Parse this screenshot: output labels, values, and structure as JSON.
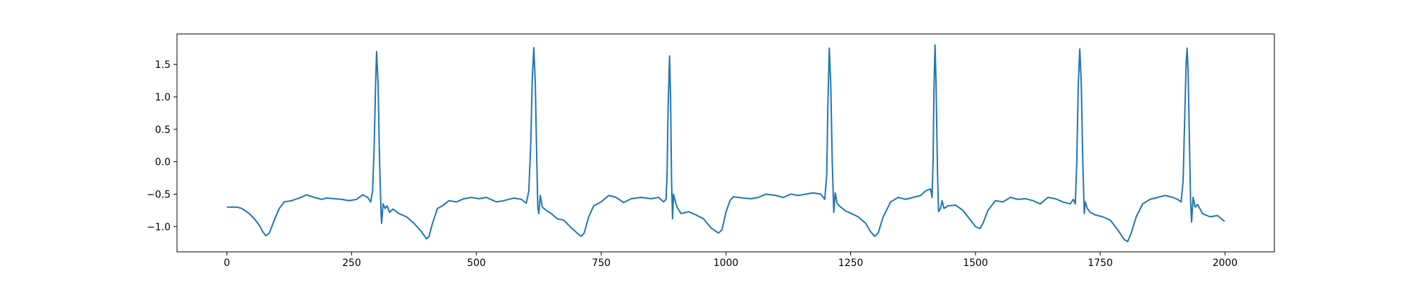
{
  "chart_data": {
    "type": "line",
    "color": "#1f77b4",
    "x": [
      0,
      20,
      30,
      45,
      55,
      65,
      72,
      78,
      85,
      95,
      105,
      115,
      130,
      145,
      160,
      175,
      190,
      200,
      215,
      230,
      245,
      260,
      272,
      282,
      288,
      292,
      295,
      298,
      300,
      303,
      306,
      309,
      310,
      313,
      317,
      321,
      326,
      333,
      345,
      360,
      375,
      390,
      400,
      405,
      412,
      422,
      432,
      445,
      460,
      475,
      490,
      505,
      520,
      540,
      555,
      575,
      590,
      600,
      605,
      609,
      612,
      615,
      618,
      621,
      623,
      625,
      628,
      632,
      640,
      650,
      662,
      675,
      690,
      705,
      710,
      716,
      725,
      735,
      750,
      765,
      780,
      795,
      810,
      830,
      850,
      865,
      875,
      880,
      882,
      884,
      887,
      889,
      891,
      893,
      895,
      898,
      902,
      910,
      925,
      940,
      955,
      970,
      985,
      992,
      1000,
      1008,
      1015,
      1035,
      1050,
      1065,
      1080,
      1100,
      1115,
      1130,
      1145,
      1160,
      1175,
      1190,
      1198,
      1202,
      1204,
      1207,
      1210,
      1213,
      1216,
      1219,
      1223,
      1230,
      1240,
      1252,
      1265,
      1280,
      1290,
      1298,
      1305,
      1315,
      1330,
      1345,
      1360,
      1375,
      1390,
      1400,
      1410,
      1413,
      1415,
      1417,
      1419,
      1421,
      1424,
      1426,
      1430,
      1433,
      1437,
      1445,
      1460,
      1475,
      1490,
      1500,
      1509,
      1515,
      1525,
      1540,
      1555,
      1570,
      1585,
      1600,
      1615,
      1630,
      1645,
      1660,
      1675,
      1690,
      1696,
      1700,
      1703,
      1706,
      1709,
      1712,
      1715,
      1718,
      1720,
      1724,
      1730,
      1740,
      1755,
      1770,
      1785,
      1798,
      1805,
      1812,
      1822,
      1835,
      1850,
      1865,
      1880,
      1895,
      1905,
      1912,
      1916,
      1919,
      1922,
      1924,
      1926,
      1929,
      1931,
      1933,
      1936,
      1940,
      1945,
      1955,
      1970,
      1985,
      1999
    ],
    "values": [
      -0.7,
      -0.7,
      -0.72,
      -0.8,
      -0.88,
      -0.98,
      -1.08,
      -1.14,
      -1.1,
      -0.9,
      -0.72,
      -0.62,
      -0.6,
      -0.56,
      -0.51,
      -0.55,
      -0.58,
      -0.56,
      -0.57,
      -0.58,
      -0.6,
      -0.58,
      -0.51,
      -0.55,
      -0.62,
      -0.45,
      0.2,
      1.2,
      1.7,
      1.2,
      0.0,
      -0.8,
      -0.95,
      -0.65,
      -0.72,
      -0.68,
      -0.78,
      -0.73,
      -0.8,
      -0.85,
      -0.95,
      -1.08,
      -1.19,
      -1.15,
      -0.95,
      -0.72,
      -0.68,
      -0.6,
      -0.62,
      -0.57,
      -0.55,
      -0.57,
      -0.55,
      -0.62,
      -0.6,
      -0.56,
      -0.58,
      -0.64,
      -0.45,
      0.3,
      1.3,
      1.76,
      1.2,
      0.0,
      -0.7,
      -0.8,
      -0.52,
      -0.7,
      -0.75,
      -0.8,
      -0.88,
      -0.9,
      -1.02,
      -1.12,
      -1.15,
      -1.1,
      -0.85,
      -0.68,
      -0.62,
      -0.52,
      -0.55,
      -0.63,
      -0.57,
      -0.55,
      -0.57,
      -0.55,
      -0.62,
      -0.58,
      -0.2,
      0.8,
      1.63,
      1.0,
      -0.3,
      -0.88,
      -0.5,
      -0.6,
      -0.7,
      -0.8,
      -0.77,
      -0.82,
      -0.88,
      -1.02,
      -1.1,
      -1.05,
      -0.78,
      -0.6,
      -0.54,
      -0.56,
      -0.57,
      -0.55,
      -0.5,
      -0.52,
      -0.55,
      -0.5,
      -0.52,
      -0.5,
      -0.48,
      -0.5,
      -0.58,
      -0.2,
      0.8,
      1.75,
      1.2,
      0.0,
      -0.78,
      -0.48,
      -0.65,
      -0.7,
      -0.76,
      -0.8,
      -0.85,
      -0.95,
      -1.08,
      -1.15,
      -1.1,
      -0.85,
      -0.62,
      -0.55,
      -0.58,
      -0.55,
      -0.52,
      -0.45,
      -0.42,
      -0.55,
      0.0,
      1.2,
      1.8,
      1.2,
      -0.2,
      -0.77,
      -0.72,
      -0.6,
      -0.72,
      -0.68,
      -0.67,
      -0.75,
      -0.9,
      -1.0,
      -1.03,
      -0.95,
      -0.75,
      -0.6,
      -0.62,
      -0.55,
      -0.58,
      -0.57,
      -0.6,
      -0.65,
      -0.55,
      -0.57,
      -0.62,
      -0.65,
      -0.58,
      -0.65,
      0.0,
      1.2,
      1.74,
      1.2,
      0.0,
      -0.8,
      -0.62,
      -0.72,
      -0.78,
      -0.82,
      -0.85,
      -0.9,
      -1.05,
      -1.2,
      -1.23,
      -1.1,
      -0.85,
      -0.65,
      -0.58,
      -0.55,
      -0.52,
      -0.55,
      -0.58,
      -0.62,
      -0.3,
      0.6,
      1.5,
      1.75,
      1.4,
      0.2,
      -0.6,
      -0.93,
      -0.55,
      -0.7,
      -0.66,
      -0.8,
      -0.85,
      -0.83,
      -0.92
    ],
    "xlim": [
      -99.95,
      2098.95
    ],
    "xticks": [
      0,
      250,
      500,
      750,
      1000,
      1250,
      1500,
      1750,
      2000
    ],
    "ylim": [
      -1.39,
      1.97
    ],
    "yticks": [
      {
        "value": -1,
        "label": "−1.0"
      },
      {
        "value": -0.5,
        "label": "−0.5"
      },
      {
        "value": 0,
        "label": "0.0"
      },
      0.5,
      {
        "value": 1,
        "label": "1.0"
      },
      1.5
    ]
  }
}
